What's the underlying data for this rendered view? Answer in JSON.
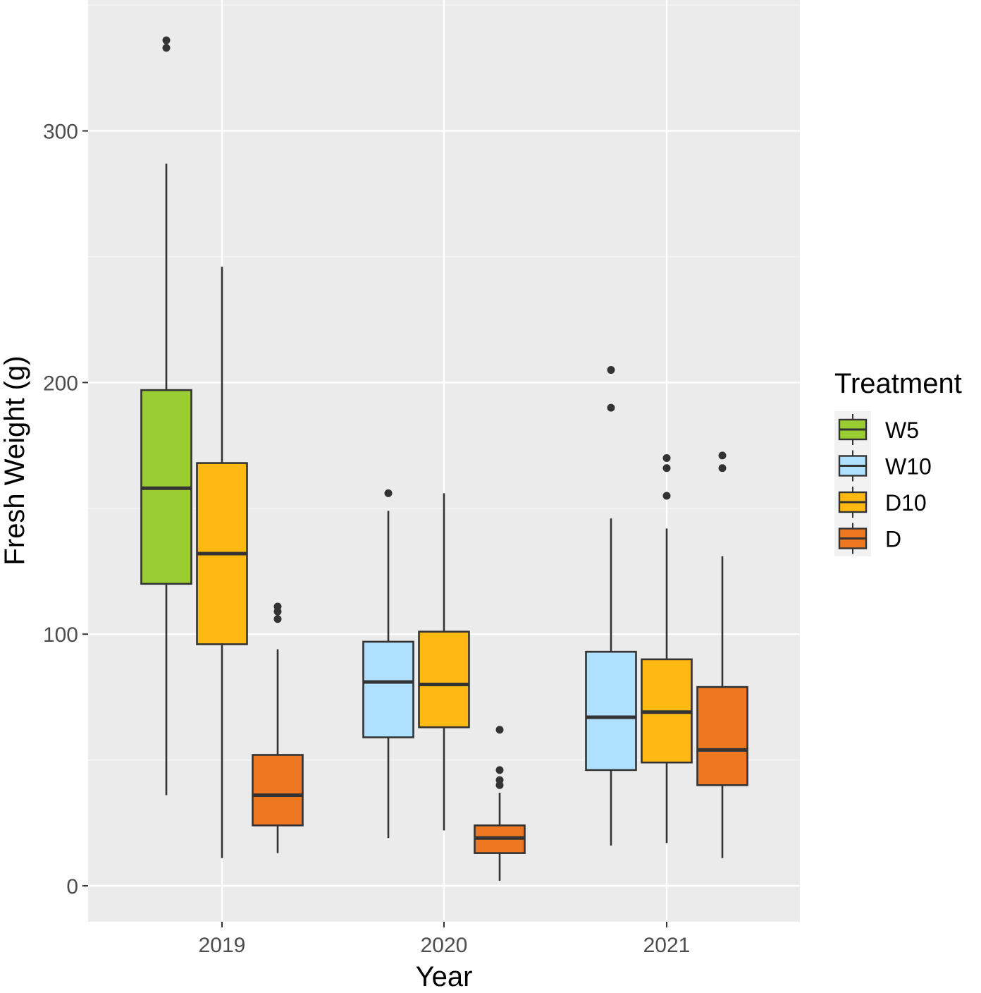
{
  "chart_data": {
    "type": "boxplot",
    "title": "",
    "xlabel": "Year",
    "ylabel": "Fresh Weight (g)",
    "ylim": [
      -14,
      350
    ],
    "yticks": [
      0,
      100,
      200,
      300
    ],
    "yminor": [
      50,
      150,
      250,
      350
    ],
    "categories": [
      "2019",
      "2020",
      "2021"
    ],
    "legend": {
      "title": "Treatment",
      "position": "right",
      "items": [
        {
          "label": "W5",
          "color": "#9ACD32"
        },
        {
          "label": "W10",
          "color": "#B0E0FF"
        },
        {
          "label": "D10",
          "color": "#FFB912"
        },
        {
          "label": "D",
          "color": "#EE7722"
        }
      ]
    },
    "boxes": [
      {
        "category": "2019",
        "treatment": "W5",
        "min": 36,
        "q1": 120,
        "median": 158,
        "q3": 197,
        "max": 287,
        "outliers": [
          333,
          336
        ]
      },
      {
        "category": "2019",
        "treatment": "D10",
        "min": 11,
        "q1": 96,
        "median": 132,
        "q3": 168,
        "max": 246,
        "outliers": []
      },
      {
        "category": "2019",
        "treatment": "D",
        "min": 13,
        "q1": 24,
        "median": 36,
        "q3": 52,
        "max": 94,
        "outliers": [
          106,
          109,
          111
        ]
      },
      {
        "category": "2020",
        "treatment": "W10",
        "min": 19,
        "q1": 59,
        "median": 81,
        "q3": 97,
        "max": 149,
        "outliers": [
          156
        ]
      },
      {
        "category": "2020",
        "treatment": "D10",
        "min": 22,
        "q1": 63,
        "median": 80,
        "q3": 101,
        "max": 156,
        "outliers": []
      },
      {
        "category": "2020",
        "treatment": "D",
        "min": 2,
        "q1": 13,
        "median": 19,
        "q3": 24,
        "max": 37,
        "outliers": [
          40,
          42,
          46,
          62
        ]
      },
      {
        "category": "2021",
        "treatment": "W10",
        "min": 16,
        "q1": 46,
        "median": 67,
        "q3": 93,
        "max": 146,
        "outliers": [
          190,
          205
        ]
      },
      {
        "category": "2021",
        "treatment": "D10",
        "min": 17,
        "q1": 49,
        "median": 69,
        "q3": 90,
        "max": 142,
        "outliers": [
          155,
          166,
          170
        ]
      },
      {
        "category": "2021",
        "treatment": "D",
        "min": 11,
        "q1": 40,
        "median": 54,
        "q3": 79,
        "max": 131,
        "outliers": [
          166,
          171
        ]
      }
    ]
  }
}
